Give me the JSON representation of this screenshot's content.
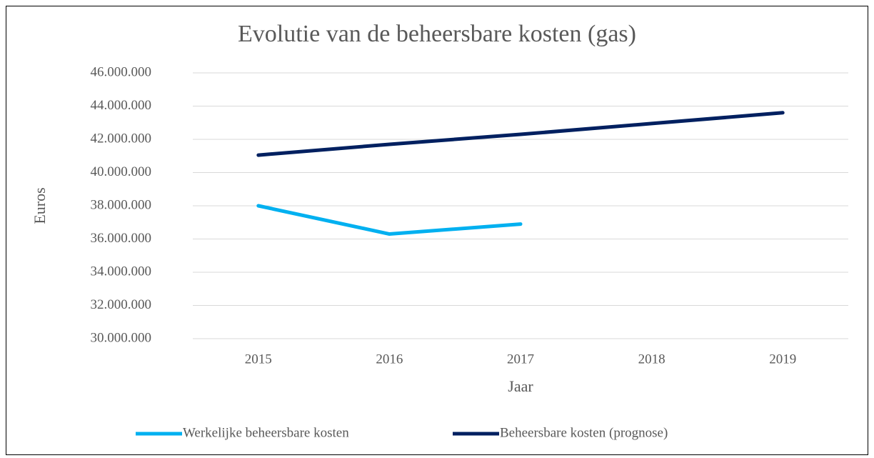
{
  "chart_data": {
    "type": "line",
    "title": "Evolutie van de beheersbare kosten (gas)",
    "x_label": "Jaar",
    "y_label": "Euros",
    "categories": [
      "2015",
      "2016",
      "2017",
      "2018",
      "2019"
    ],
    "series": [
      {
        "name": "Werkelijke beheersbare kosten",
        "color": "#00b0f0",
        "values": [
          38000000,
          36300000,
          36900000,
          null,
          null
        ]
      },
      {
        "name": "Beheersbare kosten (prognose)",
        "color": "#002060",
        "values": [
          41050000,
          41700000,
          42300000,
          42950000,
          43600000
        ]
      }
    ],
    "ylim": [
      30000000,
      46000000
    ],
    "yticks": [
      {
        "value": 30000000,
        "label": "30.000.000"
      },
      {
        "value": 32000000,
        "label": "32.000.000"
      },
      {
        "value": 34000000,
        "label": "34.000.000"
      },
      {
        "value": 36000000,
        "label": "36.000.000"
      },
      {
        "value": 38000000,
        "label": "38.000.000"
      },
      {
        "value": 40000000,
        "label": "40.000.000"
      },
      {
        "value": 42000000,
        "label": "42.000.000"
      },
      {
        "value": 44000000,
        "label": "44.000.000"
      },
      {
        "value": 46000000,
        "label": "46.000.000"
      }
    ],
    "grid": true,
    "legend": "bottom"
  }
}
